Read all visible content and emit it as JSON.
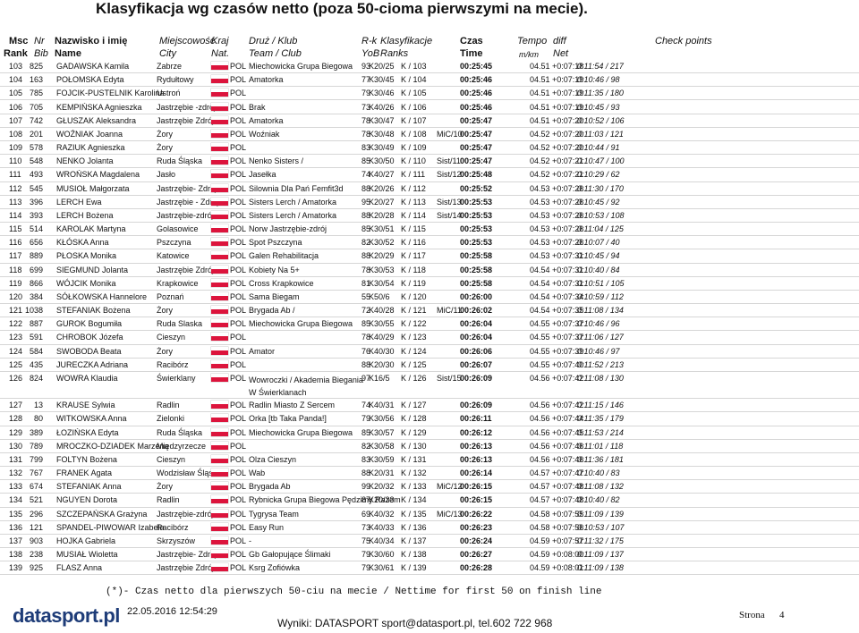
{
  "header": {
    "title": "Klasyfikacja wg czasów netto (poza 50-cioma pierwszymi na mecie).",
    "columns1": [
      "Msc",
      "Nr",
      "Nazwisko i imię",
      "Miejscowość",
      "Kraj",
      "Druż / Klub",
      "R-k",
      "Klasyfikacje",
      "Czas",
      "Tempo",
      "diff",
      "Check points"
    ],
    "columns2": [
      "Rank",
      "Bib",
      "Name",
      "City",
      "Nat.",
      "Team / Club",
      "YoB",
      "Ranks",
      "Time",
      "m/km",
      "Net"
    ]
  },
  "table": {
    "rows": [
      {
        "msc": "103",
        "nr": "825",
        "name": "GADAWSKA Kamila",
        "city": "Zabrze",
        "nat": "POL",
        "team": "Miechowicka Grupa Biegowa",
        "yob": "93",
        "cat": "K20/25",
        "rank": "K / 103",
        "time": "00:25:45",
        "tempo": "04.51",
        "diff": "+0:07:18",
        "net": "0:11:54 / 217"
      },
      {
        "msc": "104",
        "nr": "163",
        "name": "POŁOMSKA Edyta",
        "city": "Rydułtowy",
        "nat": "POL",
        "team": "Amatorka",
        "yob": "77",
        "cat": "K30/45",
        "rank": "K / 104",
        "time": "00:25:46",
        "tempo": "04.51",
        "diff": "+0:07:19",
        "net": "0:10:46 / 98"
      },
      {
        "msc": "105",
        "nr": "785",
        "name": "FOJCIK-PUSTELNIK Karolina",
        "city": "Ustroń",
        "nat": "POL",
        "yob": "79",
        "cat": "K30/46",
        "rank": "K / 105",
        "time": "00:25:46",
        "tempo": "04.51",
        "diff": "+0:07:19",
        "net": "0:11:35 / 180"
      },
      {
        "msc": "106",
        "nr": "705",
        "name": "KEMPIŃSKA Agnieszka",
        "city": "Jastrzębie -zdrój",
        "nat": "POL",
        "team": "Brak",
        "yob": "73",
        "cat": "K40/26",
        "rank": "K / 106",
        "time": "00:25:46",
        "tempo": "04.51",
        "diff": "+0:07:19",
        "net": "0:10:45 / 93"
      },
      {
        "msc": "107",
        "nr": "742",
        "name": "GŁUSZAK Aleksandra",
        "city": "Jastrzębie Zdrój",
        "nat": "POL",
        "team": "Amatorka",
        "yob": "78",
        "cat": "K30/47",
        "rank": "K / 107",
        "time": "00:25:47",
        "tempo": "04.51",
        "diff": "+0:07:20",
        "net": "0:10:52 / 106"
      },
      {
        "msc": "108",
        "nr": "201",
        "name": "WOŹNIAK Joanna",
        "city": "Żory",
        "nat": "POL",
        "team": "Woźniak",
        "yob": "78",
        "cat": "K30/48",
        "rank": "K / 108",
        "extra": "MiC/10",
        "time": "00:25:47",
        "tempo": "04.52",
        "diff": "+0:07:20",
        "net": "0:11:03 / 121"
      },
      {
        "msc": "109",
        "nr": "578",
        "name": "RAZIUK Agnieszka",
        "city": "Żory",
        "nat": "POL",
        "yob": "83",
        "cat": "K30/49",
        "rank": "K / 109",
        "time": "00:25:47",
        "tempo": "04.52",
        "diff": "+0:07:20",
        "net": "0:10:44 / 91"
      },
      {
        "msc": "110",
        "nr": "548",
        "name": "NENKO Jolanta",
        "city": "Ruda Śląska",
        "nat": "POL",
        "team": "Nenko Sisters /",
        "yob": "85",
        "cat": "K30/50",
        "rank": "K / 110",
        "extra": "Sist/11",
        "time": "00:25:47",
        "tempo": "04.52",
        "diff": "+0:07:21",
        "net": "0:10:47 / 100"
      },
      {
        "msc": "111",
        "nr": "493",
        "name": "WROŃSKA Magdalena",
        "city": "Jasło",
        "nat": "POL",
        "team": "Jasełka",
        "yob": "74",
        "cat": "K40/27",
        "rank": "K / 111",
        "extra": "Sist/12",
        "time": "00:25:48",
        "tempo": "04.52",
        "diff": "+0:07:21",
        "net": "0:10:29 / 62"
      },
      {
        "msc": "112",
        "nr": "545",
        "name": "MUSIOŁ Małgorzata",
        "city": "Jastrzębie- Zdrój",
        "nat": "POL",
        "team": "Silownia Dla Pań Femfit3d",
        "yob": "88",
        "cat": "K20/26",
        "rank": "K / 112",
        "time": "00:25:52",
        "tempo": "04.53",
        "diff": "+0:07:26",
        "net": "0:11:30 / 170"
      },
      {
        "msc": "113",
        "nr": "396",
        "name": "LERCH Ewa",
        "city": "Jastrzębie - Zdrój",
        "nat": "POL",
        "team": "Sisters Lerch / Amatorka",
        "yob": "95",
        "cat": "K20/27",
        "rank": "K / 113",
        "extra": "Sist/13",
        "time": "00:25:53",
        "tempo": "04.53",
        "diff": "+0:07:26",
        "net": "0:10:45 / 92"
      },
      {
        "msc": "114",
        "nr": "393",
        "name": "LERCH Bożena",
        "city": "Jastrzębie-zdrój",
        "nat": "POL",
        "team": "Sisters Lerch / Amatorka",
        "yob": "88",
        "cat": "K20/28",
        "rank": "K / 114",
        "extra": "Sist/14",
        "time": "00:25:53",
        "tempo": "04.53",
        "diff": "+0:07:26",
        "net": "0:10:53 / 108"
      },
      {
        "msc": "115",
        "nr": "514",
        "name": "KAROLAK Martyna",
        "city": "Golasowice",
        "nat": "POL",
        "team": "Norw Jastrzębie-zdrój",
        "yob": "85",
        "cat": "K30/51",
        "rank": "K / 115",
        "time": "00:25:53",
        "tempo": "04.53",
        "diff": "+0:07:26",
        "net": "0:11:04 / 125"
      },
      {
        "msc": "116",
        "nr": "656",
        "name": "KŁÓSKA Anna",
        "city": "Pszczyna",
        "nat": "POL",
        "team": "Spot Pszczyna",
        "yob": "82",
        "cat": "K30/52",
        "rank": "K / 116",
        "time": "00:25:53",
        "tempo": "04.53",
        "diff": "+0:07:26",
        "net": "0:10:07 / 40"
      },
      {
        "msc": "117",
        "nr": "889",
        "name": "PŁOSKA Monika",
        "city": "Katowice",
        "nat": "POL",
        "team": "Galen Rehabilitacja",
        "yob": "88",
        "cat": "K20/29",
        "rank": "K / 117",
        "time": "00:25:58",
        "tempo": "04.53",
        "diff": "+0:07:31",
        "net": "0:10:45 / 94"
      },
      {
        "msc": "118",
        "nr": "699",
        "name": "SIEGMUND Jolanta",
        "city": "Jastrzębie Zdrój",
        "nat": "POL",
        "team": "Kobiety Na 5+",
        "yob": "78",
        "cat": "K30/53",
        "rank": "K / 118",
        "time": "00:25:58",
        "tempo": "04.54",
        "diff": "+0:07:31",
        "net": "0:10:40 / 84"
      },
      {
        "msc": "119",
        "nr": "866",
        "name": "WÓJCIK Monika",
        "city": "Krapkowice",
        "nat": "POL",
        "team": "Cross Krapkowice",
        "yob": "81",
        "cat": "K30/54",
        "rank": "K / 119",
        "time": "00:25:58",
        "tempo": "04.54",
        "diff": "+0:07:31",
        "net": "0:10:51 / 105"
      },
      {
        "msc": "120",
        "nr": "384",
        "name": "SÓŁKOWSKA Hannelore",
        "city": "Poznań",
        "nat": "POL",
        "team": "Sama Biegam",
        "yob": "55",
        "cat": "K50/6",
        "rank": "K / 120",
        "time": "00:26:00",
        "tempo": "04.54",
        "diff": "+0:07:34",
        "net": "0:10:59 / 112"
      },
      {
        "msc": "121",
        "nr": "1038",
        "name": "STEFANIAK Bożena",
        "city": "Żory",
        "nat": "POL",
        "team": "Brygada Ab /",
        "yob": "72",
        "cat": "K40/28",
        "rank": "K / 121",
        "extra": "MiC/11",
        "time": "00:26:02",
        "tempo": "04.54",
        "diff": "+0:07:35",
        "net": "0:11:08 / 134"
      },
      {
        "msc": "122",
        "nr": "887",
        "name": "GUROK Bogumiła",
        "city": "Ruda Slaska",
        "nat": "POL",
        "team": "Miechowicka Grupa Biegowa",
        "yob": "85",
        "cat": "K30/55",
        "rank": "K / 122",
        "time": "00:26:04",
        "tempo": "04.55",
        "diff": "+0:07:37",
        "net": "0:10:46 / 96"
      },
      {
        "msc": "123",
        "nr": "591",
        "name": "CHROBOK Józefa",
        "city": "Cieszyn",
        "nat": "POL",
        "yob": "78",
        "cat": "K40/29",
        "rank": "K / 123",
        "time": "00:26:04",
        "tempo": "04.55",
        "diff": "+0:07:37",
        "net": "0:11:06 / 127"
      },
      {
        "msc": "124",
        "nr": "584",
        "name": "SWOBODA Beata",
        "city": "Żory",
        "nat": "POL",
        "team": "Amator",
        "yob": "76",
        "cat": "K40/30",
        "rank": "K / 124",
        "time": "00:26:06",
        "tempo": "04.55",
        "diff": "+0:07:39",
        "net": "0:10:46 / 97"
      },
      {
        "msc": "125",
        "nr": "435",
        "name": "JURECZKA Adriana",
        "city": "Racibórz",
        "nat": "POL",
        "yob": "88",
        "cat": "K20/30",
        "rank": "K / 125",
        "time": "00:26:07",
        "tempo": "04.55",
        "diff": "+0:07:40",
        "net": "0:11:52 / 213"
      },
      {
        "msc": "126",
        "nr": "824",
        "name": "WOWRA Klaudia",
        "city": "Świerklany",
        "nat": "POL",
        "team": "Wowroczki / Akademia Biegania W Świerklanach",
        "yob": "97",
        "cat": "K16/5",
        "rank": "K / 126",
        "extra": "Sist/15",
        "time": "00:26:09",
        "tempo": "04.56",
        "diff": "+0:07:42",
        "net": "0:11:08 / 130"
      },
      {
        "msc": "127",
        "nr": "13",
        "name": "KRAUSE Sylwia",
        "city": "Radlin",
        "nat": "POL",
        "team": "Radlin Miasto Z Sercem",
        "yob": "74",
        "cat": "K40/31",
        "rank": "K / 127",
        "time": "00:26:09",
        "tempo": "04.56",
        "diff": "+0:07:42",
        "net": "0:11:15 / 146"
      },
      {
        "msc": "128",
        "nr": "80",
        "name": "WITKOWSKA Anna",
        "city": "Zielonki",
        "nat": "POL",
        "team": "Orka [tb Taka Panda!]",
        "yob": "79",
        "cat": "K30/56",
        "rank": "K / 128",
        "time": "00:26:11",
        "tempo": "04.56",
        "diff": "+0:07:44",
        "net": "0:11:35 / 179"
      },
      {
        "msc": "129",
        "nr": "389",
        "name": "ŁOZIŃSKA Edyta",
        "city": "Ruda Śląska",
        "nat": "POL",
        "team": "Miechowicka Grupa Biegowa",
        "yob": "85",
        "cat": "K30/57",
        "rank": "K / 129",
        "time": "00:26:12",
        "tempo": "04.56",
        "diff": "+0:07:45",
        "net": "0:11:53 / 214"
      },
      {
        "msc": "130",
        "nr": "789",
        "name": "MROCZKO-DZIADEK Marzena",
        "city": "Międzyrzecze",
        "nat": "POL",
        "yob": "82",
        "cat": "K30/58",
        "rank": "K / 130",
        "time": "00:26:13",
        "tempo": "04.56",
        "diff": "+0:07:46",
        "net": "0:11:01 / 118"
      },
      {
        "msc": "131",
        "nr": "799",
        "name": "FOLTYN Bożena",
        "city": "Cieszyn",
        "nat": "POL",
        "team": "Olza Cieszyn",
        "yob": "83",
        "cat": "K30/59",
        "rank": "K / 131",
        "time": "00:26:13",
        "tempo": "04.56",
        "diff": "+0:07:46",
        "net": "0:11:36 / 181"
      },
      {
        "msc": "132",
        "nr": "767",
        "name": "FRANEK Agata",
        "city": "Wodzisław Śląski",
        "nat": "POL",
        "team": "Wab",
        "yob": "88",
        "cat": "K20/31",
        "rank": "K / 132",
        "time": "00:26:14",
        "tempo": "04.57",
        "diff": "+0:07:47",
        "net": "0:10:40 / 83"
      },
      {
        "msc": "133",
        "nr": "674",
        "name": "STEFANIAK Anna",
        "city": "Żory",
        "nat": "POL",
        "team": "Brygada Ab",
        "yob": "99",
        "cat": "K20/32",
        "rank": "K / 133",
        "extra": "MiC/12",
        "time": "00:26:15",
        "tempo": "04.57",
        "diff": "+0:07:48",
        "net": "0:11:08 / 132"
      },
      {
        "msc": "134",
        "nr": "521",
        "name": "NGUYEN Dorota",
        "city": "Radlin",
        "nat": "POL",
        "team": "Rybnicka Grupa Biegowa Pędzimy Razem",
        "yob": "87",
        "cat": "K20/33",
        "rank": "K / 134",
        "time": "00:26:15",
        "tempo": "04.57",
        "diff": "+0:07:48",
        "net": "0:10:40 / 82"
      },
      {
        "msc": "135",
        "nr": "296",
        "name": "SZCZEPAŃSKA Grażyna",
        "city": "Jastrzębie-zdrój",
        "nat": "POL",
        "team": "Tygrysa Team",
        "yob": "69",
        "cat": "K40/32",
        "rank": "K / 135",
        "extra": "MiC/13",
        "time": "00:26:22",
        "tempo": "04.58",
        "diff": "+0:07:55",
        "net": "0:11:09 / 139"
      },
      {
        "msc": "136",
        "nr": "121",
        "name": "SPANDEL-PIWOWAR Izabela",
        "city": "Racibórz",
        "nat": "POL",
        "team": "Easy Run",
        "yob": "73",
        "cat": "K40/33",
        "rank": "K / 136",
        "time": "00:26:23",
        "tempo": "04.58",
        "diff": "+0:07:56",
        "net": "0:10:53 / 107"
      },
      {
        "msc": "137",
        "nr": "903",
        "name": "HOJKA Gabriela",
        "city": "Skrzyszów",
        "nat": "POL",
        "team": "-",
        "yob": "75",
        "cat": "K40/34",
        "rank": "K / 137",
        "time": "00:26:24",
        "tempo": "04.59",
        "diff": "+0:07:57",
        "net": "0:11:32 / 175"
      },
      {
        "msc": "138",
        "nr": "238",
        "name": "MUSIAŁ Wioletta",
        "city": "Jastrzębie- Zdrój",
        "nat": "POL",
        "team": "Gb Gałopujące Ślimaki",
        "yob": "79",
        "cat": "K30/60",
        "rank": "K / 138",
        "time": "00:26:27",
        "tempo": "04.59",
        "diff": "+0:08:00",
        "net": "0:11:09 / 137"
      },
      {
        "msc": "139",
        "nr": "925",
        "name": "FLASZ Anna",
        "city": "Jastrzębie Zdrój",
        "nat": "POL",
        "team": "Ksrg Zofiówka",
        "yob": "79",
        "cat": "K30/61",
        "rank": "K / 139",
        "time": "00:26:28",
        "tempo": "04.59",
        "diff": "+0:08:01",
        "net": "0:11:09 / 138"
      }
    ]
  },
  "footer": {
    "note": "(*)- Czas netto dla pierwszych 50-ciu na mecie / Nettime for first 50 on finish line",
    "logo": "datasport.pl",
    "date": "22.05.2016 12:54:29",
    "contact": "Wyniki: DATASPORT sport@datasport.pl, tel.602 722 968",
    "page_label": "Strona",
    "page_number": "4"
  }
}
